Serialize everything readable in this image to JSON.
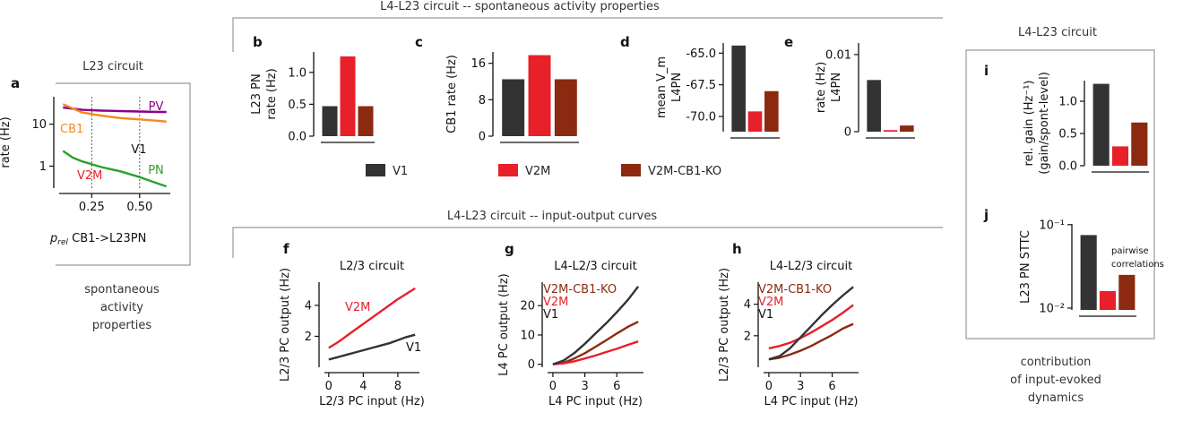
{
  "colors": {
    "v1": "#333333",
    "v2m": "#e8202a",
    "ko": "#8b2a10",
    "pv": "#8b008b",
    "cb1": "#f28a1e",
    "pn": "#2ca02c",
    "frame": "#999999"
  },
  "headers": {
    "spont": "L4-L23 circuit  -- spontaneous activity properties",
    "io": "L4-L23 circuit  -- input-output curves",
    "l23": "L23 circuit",
    "l4l23": "L4-L23 circuit"
  },
  "captions": {
    "a": [
      "spontaneous",
      "activity",
      "properties"
    ],
    "right": [
      "contribution",
      "of input-evoked",
      "dynamics"
    ]
  },
  "legend": [
    "V1",
    "V2M",
    "V2M-CB1-KO"
  ],
  "chart_data": [
    {
      "id": "a",
      "type": "line",
      "title": "L23 circuit",
      "ylabel": "rate (Hz)",
      "xlabel": "p_rel CB1->L23PN",
      "yscale": "log",
      "xlim": [
        0.08,
        0.66
      ],
      "ylim": [
        0.3,
        45
      ],
      "x_ticks": [
        "0.25",
        "0.50"
      ],
      "y_ticks": [
        "1",
        "10"
      ],
      "annotations": [
        "V1",
        "V2M"
      ],
      "vlines": [
        0.25,
        0.5
      ],
      "series": [
        {
          "name": "PV",
          "x": [
            0.1,
            0.2,
            0.3,
            0.4,
            0.5,
            0.6,
            0.64
          ],
          "y": [
            25,
            22,
            21,
            20.5,
            20,
            19.5,
            19.5
          ]
        },
        {
          "name": "CB1",
          "x": [
            0.1,
            0.2,
            0.3,
            0.4,
            0.5,
            0.6,
            0.64
          ],
          "y": [
            30,
            19,
            16,
            14,
            13,
            12,
            11.5
          ]
        },
        {
          "name": "PN",
          "x": [
            0.1,
            0.15,
            0.2,
            0.3,
            0.4,
            0.5,
            0.6,
            0.64
          ],
          "y": [
            2.3,
            1.6,
            1.3,
            0.95,
            0.75,
            0.55,
            0.38,
            0.33
          ]
        }
      ]
    },
    {
      "id": "b",
      "type": "bar",
      "ylabel": [
        "L23 PN",
        "rate (Hz)"
      ],
      "categories": [
        "V1",
        "V2M",
        "V2M-CB1-KO"
      ],
      "values": [
        0.47,
        1.25,
        0.47
      ],
      "ylim": [
        0,
        1.32
      ],
      "y_ticks": [
        "0.0",
        "0.5",
        "1.0"
      ]
    },
    {
      "id": "c",
      "type": "bar",
      "ylabel": [
        "CB1 rate (Hz)"
      ],
      "categories": [
        "V1",
        "V2M",
        "V2M-CB1-KO"
      ],
      "values": [
        12.5,
        17.8,
        12.5
      ],
      "ylim": [
        0,
        18.5
      ],
      "y_ticks": [
        "0",
        "8",
        "16"
      ]
    },
    {
      "id": "d",
      "type": "bar",
      "ylabel": [
        "mean V_m",
        "L4PN"
      ],
      "categories": [
        "V1",
        "V2M",
        "V2M-CB1-KO"
      ],
      "values": [
        -64.4,
        -69.6,
        -68.0
      ],
      "ylim": [
        -71.2,
        -64.2
      ],
      "y_ticks": [
        "-70.0",
        "-67.5",
        "-65.0"
      ]
    },
    {
      "id": "e",
      "type": "bar",
      "ylabel": [
        "rate (Hz)",
        "L4PN"
      ],
      "categories": [
        "V1",
        "V2M",
        "V2M-CB1-KO"
      ],
      "values": [
        0.0067,
        0.0002,
        0.0008
      ],
      "ylim": [
        0,
        0.0115
      ],
      "y_ticks": [
        "0",
        "0.01"
      ]
    },
    {
      "id": "f",
      "type": "line",
      "title": "L2/3 circuit",
      "xlabel": "L2/3 PC input (Hz)",
      "ylabel": "L2/3 PC output (Hz)",
      "xlim": [
        -0.5,
        10.5
      ],
      "ylim": [
        0,
        5.5
      ],
      "x_ticks": [
        "0",
        "4",
        "8"
      ],
      "y_ticks": [
        "2",
        "4"
      ],
      "series": [
        {
          "name": "V2M",
          "x": [
            0,
            1,
            2,
            3,
            4,
            5,
            6,
            7,
            8,
            9,
            10
          ],
          "y": [
            1.25,
            1.6,
            2.0,
            2.4,
            2.8,
            3.2,
            3.6,
            4.0,
            4.4,
            4.75,
            5.1
          ]
        },
        {
          "name": "V1",
          "x": [
            0,
            1,
            2,
            3,
            4,
            5,
            6,
            7,
            8,
            9,
            10
          ],
          "y": [
            0.5,
            0.65,
            0.8,
            0.95,
            1.1,
            1.25,
            1.4,
            1.55,
            1.75,
            1.95,
            2.1
          ]
        }
      ]
    },
    {
      "id": "g",
      "type": "line",
      "title": "L4-L2/3 circuit",
      "xlabel": "L4 PC input (Hz)",
      "ylabel": "L4 PC output (Hz)",
      "xlim": [
        -0.5,
        8.5
      ],
      "ylim": [
        -1,
        28
      ],
      "x_ticks": [
        "0",
        "3",
        "6"
      ],
      "y_ticks": [
        "0",
        "10",
        "20"
      ],
      "series": [
        {
          "name": "V2M-CB1-KO",
          "x": [
            0,
            1,
            2,
            3,
            4,
            5,
            6,
            7,
            8
          ],
          "y": [
            0,
            0.5,
            2,
            3.8,
            6,
            8.2,
            10.5,
            12.7,
            14.5
          ]
        },
        {
          "name": "V2M",
          "x": [
            0,
            1,
            2,
            3,
            4,
            5,
            6,
            7,
            8
          ],
          "y": [
            0,
            0.3,
            1,
            2,
            3,
            4.2,
            5.3,
            6.6,
            7.8
          ]
        },
        {
          "name": "V1",
          "x": [
            0,
            1,
            2,
            3,
            4,
            5,
            6,
            7,
            8
          ],
          "y": [
            0,
            1.3,
            3.8,
            7,
            10.5,
            14,
            17.8,
            21.8,
            26.5
          ]
        }
      ]
    },
    {
      "id": "h",
      "type": "line",
      "title": "L4-L2/3 circuit",
      "xlabel": "L4 PC input (Hz)",
      "ylabel": "L2/3 PC output (Hz)",
      "xlim": [
        -0.5,
        8.5
      ],
      "ylim": [
        0,
        5.4
      ],
      "x_ticks": [
        "0",
        "3",
        "6"
      ],
      "y_ticks": [
        "2",
        "4"
      ],
      "series": [
        {
          "name": "V2M-CB1-KO",
          "x": [
            0,
            1,
            2,
            3,
            4,
            5,
            6,
            7,
            8
          ],
          "y": [
            0.5,
            0.6,
            0.8,
            1.05,
            1.35,
            1.7,
            2.05,
            2.45,
            2.75
          ]
        },
        {
          "name": "V2M",
          "x": [
            0,
            1,
            2,
            3,
            4,
            5,
            6,
            7,
            8
          ],
          "y": [
            1.2,
            1.35,
            1.55,
            1.85,
            2.2,
            2.6,
            3.0,
            3.45,
            3.95
          ]
        },
        {
          "name": "V1",
          "x": [
            0,
            1,
            2,
            3,
            4,
            5,
            6,
            7,
            8
          ],
          "y": [
            0.5,
            0.7,
            1.2,
            1.9,
            2.6,
            3.3,
            3.95,
            4.55,
            5.1
          ]
        }
      ]
    },
    {
      "id": "i",
      "type": "bar",
      "ylabel": [
        "rel. gain (Hz⁻¹)",
        "(gain/spont-level)"
      ],
      "categories": [
        "V1",
        "V2M",
        "V2M-CB1-KO"
      ],
      "values": [
        1.27,
        0.3,
        0.67
      ],
      "ylim": [
        0,
        1.32
      ],
      "y_ticks": [
        "0.0",
        "0.5",
        "1.0"
      ]
    },
    {
      "id": "j",
      "type": "bar",
      "ylabel": [
        "L23 PN STTC"
      ],
      "yscale": "log",
      "annotation": [
        "pairwise",
        "correlations"
      ],
      "categories": [
        "V1",
        "V2M",
        "V2M-CB1-KO"
      ],
      "values": [
        0.075,
        0.016,
        0.025
      ],
      "ylim": [
        0.0095,
        0.102
      ],
      "y_ticks": [
        "10⁻¹",
        "10⁻²"
      ]
    }
  ]
}
